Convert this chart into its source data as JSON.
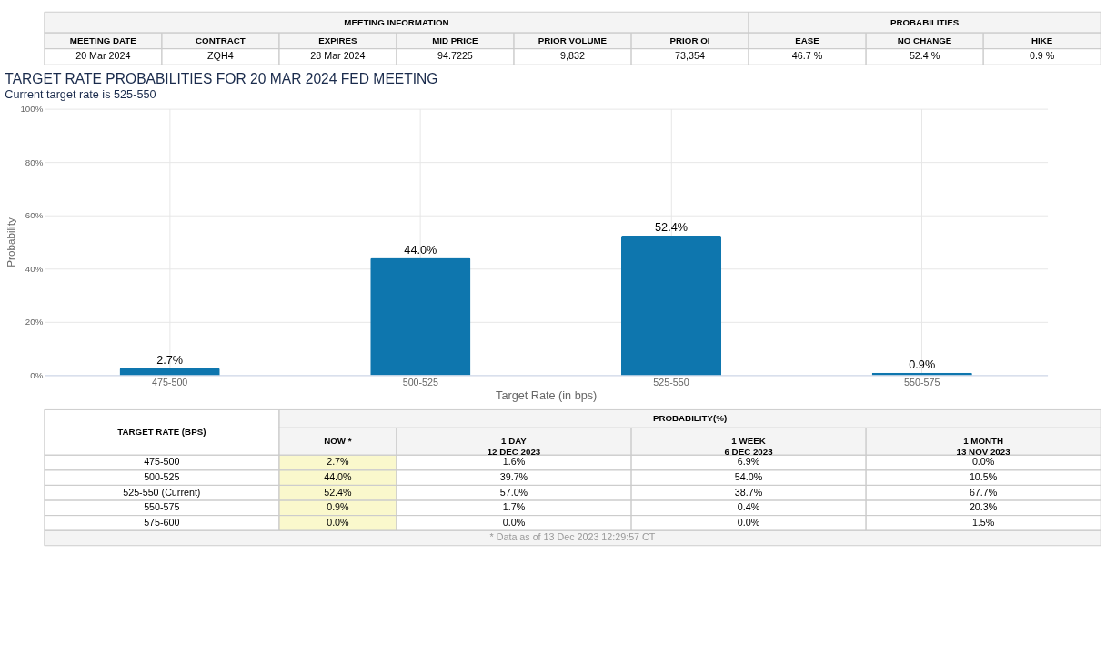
{
  "chart_data": [
    {
      "type": "other",
      "annotations": [
        "MEETING INFORMATION",
        "PROBABILITIES",
        "MEETING DATE",
        "CONTRACT",
        "EXPIRES",
        "MID PRICE",
        "PRIOR VOLUME",
        "PRIOR OI",
        "EASE",
        "NO CHANGE",
        "HIKE",
        "20 Mar 2024",
        "ZQH4",
        "28 Mar 2024",
        "94.7225",
        "9,832",
        "73,354",
        "46.7 %",
        "52.4 %",
        "0.9 %"
      ]
    },
    {
      "type": "bar",
      "title": "TARGET RATE PROBABILITIES FOR 20 MAR 2024 FED MEETING",
      "subtitle": "Current target rate is 525-550",
      "xlabel": "Target Rate (in bps)",
      "ylabel": "Probability",
      "categories": [
        "475-500",
        "500-525",
        "525-550",
        "550-575"
      ],
      "values": [
        2.7,
        44.0,
        52.4,
        0.9
      ],
      "value_labels": [
        "2.7%",
        "44.0%",
        "52.4%",
        "0.9%"
      ],
      "color": "#0e76ae",
      "ylim": [
        0,
        100
      ],
      "yticks": [
        {
          "value": 0,
          "label": "0%"
        },
        {
          "value": 20,
          "label": "20%"
        },
        {
          "value": 40,
          "label": "40%"
        },
        {
          "value": 60,
          "label": "60%"
        },
        {
          "value": 80,
          "label": "80%"
        },
        {
          "value": 100,
          "label": "100%"
        }
      ],
      "grid": true
    },
    {
      "type": "other",
      "annotations": [
        "TARGET RATE (BPS)",
        "PROBABILITY(%)",
        "NOW *",
        "1 DAY\n12 DEC 2023",
        "1 WEEK\n6 DEC 2023",
        "1 MONTH\n13 NOV 2023",
        "475-500",
        "2.7%",
        "1.6%",
        "6.9%",
        "0.0%",
        "500-525",
        "44.0%",
        "39.7%",
        "54.0%",
        "10.5%",
        "525-550 (Current)",
        "52.4%",
        "57.0%",
        "38.7%",
        "67.7%",
        "550-575",
        "0.9%",
        "1.7%",
        "0.4%",
        "20.3%",
        "575-600",
        "0.0%",
        "0.0%",
        "0.0%",
        "1.5%",
        "* Data as of 13 Dec 2023 12:29:57 CT"
      ]
    }
  ]
}
